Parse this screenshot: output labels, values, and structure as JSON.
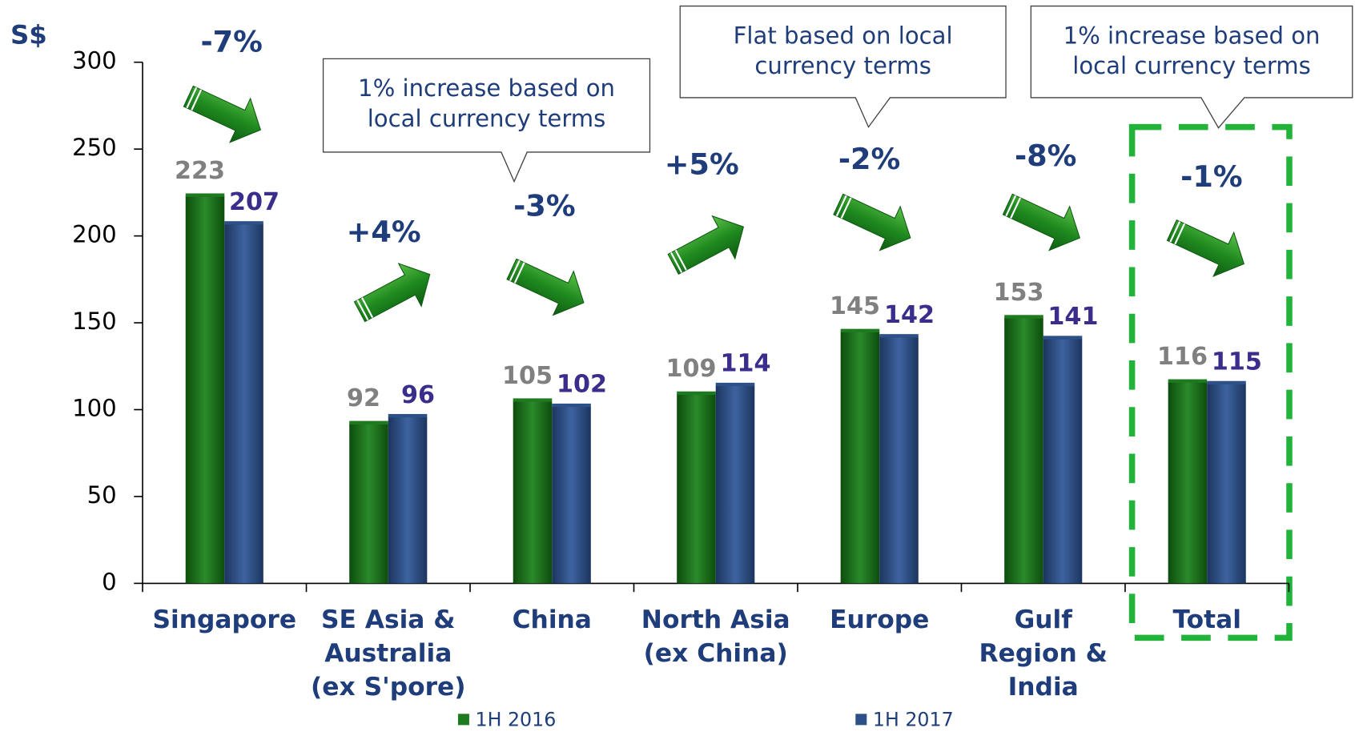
{
  "chart_data": {
    "type": "bar",
    "y_label": "S$",
    "categories": [
      "Singapore",
      "SE Asia & Australia (ex S'pore)",
      "China",
      "North Asia (ex China)",
      "Europe",
      "Gulf Region & India",
      "Total"
    ],
    "series": [
      {
        "name": "1H 2016",
        "color": "#1e7a1e",
        "label_color": "#808080",
        "values": [
          223,
          92,
          105,
          109,
          145,
          153,
          116
        ]
      },
      {
        "name": "1H 2017",
        "color": "#2e5088",
        "label_color": "#3a2d8c",
        "values": [
          207,
          96,
          102,
          114,
          142,
          141,
          115
        ]
      }
    ],
    "changes": [
      "-7%",
      "+4%",
      "-3%",
      "+5%",
      "-2%",
      "-8%",
      "-1%"
    ],
    "callouts": [
      "1% increase based on local currency terms",
      "Flat based on local currency terms",
      "1% increase based on local currency terms"
    ],
    "ylim": [
      0,
      300
    ],
    "yticks": [
      0,
      50,
      100,
      150,
      200,
      250,
      300
    ],
    "grid": false,
    "legend": "bottom"
  }
}
